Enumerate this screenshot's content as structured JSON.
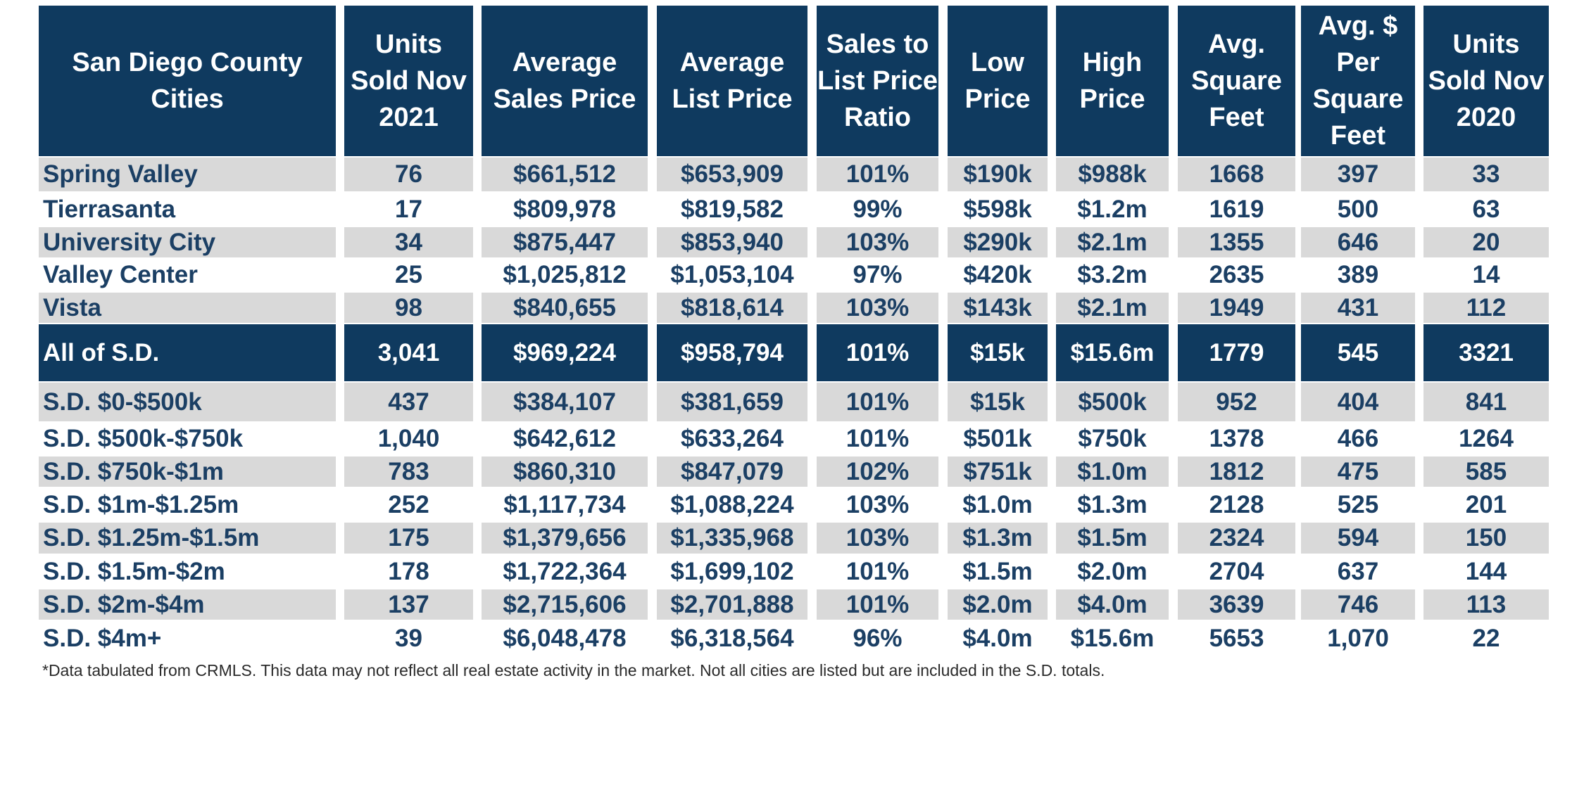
{
  "headers": [
    "San Diego County Cities",
    "Units Sold Nov 2021",
    "Average Sales Price",
    "Average List Price",
    "Sales to List Price Ratio",
    "Low Price",
    "High Price",
    "Avg. Square Feet",
    "Avg. $ Per Square Feet",
    "Units Sold Nov 2020"
  ],
  "rows": [
    {
      "style": "grey",
      "cells": [
        "Spring Valley",
        "76",
        "$661,512",
        "$653,909",
        "101%",
        "$190k",
        "$988k",
        "1668",
        "397",
        "33"
      ]
    },
    {
      "style": "white",
      "cells": [
        "Tierrasanta",
        "17",
        "$809,978",
        "$819,582",
        "99%",
        "$598k",
        "$1.2m",
        "1619",
        "500",
        "63"
      ]
    },
    {
      "style": "grey",
      "cells": [
        "University City",
        "34",
        "$875,447",
        "$853,940",
        "103%",
        "$290k",
        "$2.1m",
        "1355",
        "646",
        "20"
      ]
    },
    {
      "style": "white",
      "cells": [
        "Valley Center",
        "25",
        "$1,025,812",
        "$1,053,104",
        "97%",
        "$420k",
        "$3.2m",
        "2635",
        "389",
        "14"
      ]
    },
    {
      "style": "grey",
      "cells": [
        "Vista",
        "98",
        "$840,655",
        "$818,614",
        "103%",
        "$143k",
        "$2.1m",
        "1949",
        "431",
        "112"
      ]
    },
    {
      "style": "total",
      "cells": [
        "All of S.D.",
        "3,041",
        "$969,224",
        "$958,794",
        "101%",
        "$15k",
        "$15.6m",
        "1779",
        "545",
        "3321"
      ]
    },
    {
      "style": "grey",
      "cells": [
        "S.D. $0-$500k",
        "437",
        "$384,107",
        "$381,659",
        "101%",
        "$15k",
        "$500k",
        "952",
        "404",
        "841"
      ]
    },
    {
      "style": "white",
      "cells": [
        "S.D. $500k-$750k",
        "1,040",
        "$642,612",
        "$633,264",
        "101%",
        "$501k",
        "$750k",
        "1378",
        "466",
        "1264"
      ]
    },
    {
      "style": "grey",
      "cells": [
        "S.D. $750k-$1m",
        "783",
        "$860,310",
        "$847,079",
        "102%",
        "$751k",
        "$1.0m",
        "1812",
        "475",
        "585"
      ]
    },
    {
      "style": "white",
      "cells": [
        "S.D. $1m-$1.25m",
        "252",
        "$1,117,734",
        "$1,088,224",
        "103%",
        "$1.0m",
        "$1.3m",
        "2128",
        "525",
        "201"
      ]
    },
    {
      "style": "grey",
      "cells": [
        "S.D. $1.25m-$1.5m",
        "175",
        "$1,379,656",
        "$1,335,968",
        "103%",
        "$1.3m",
        "$1.5m",
        "2324",
        "594",
        "150"
      ]
    },
    {
      "style": "white",
      "cells": [
        "S.D. $1.5m-$2m",
        "178",
        "$1,722,364",
        "$1,699,102",
        "101%",
        "$1.5m",
        "$2.0m",
        "2704",
        "637",
        "144"
      ]
    },
    {
      "style": "grey",
      "cells": [
        "S.D. $2m-$4m",
        "137",
        "$2,715,606",
        "$2,701,888",
        "101%",
        "$2.0m",
        "$4.0m",
        "3639",
        "746",
        "113"
      ]
    },
    {
      "style": "white",
      "cells": [
        "S.D. $4m+",
        "39",
        "$6,048,478",
        "$6,318,564",
        "96%",
        "$4.0m",
        "$15.6m",
        "5653",
        "1,070",
        "22"
      ]
    }
  ],
  "footnote": "*Data tabulated  from CRMLS.  This data may not reflect all real estate activity in the market.  Not all cities are listed but are included in the S.D. totals."
}
